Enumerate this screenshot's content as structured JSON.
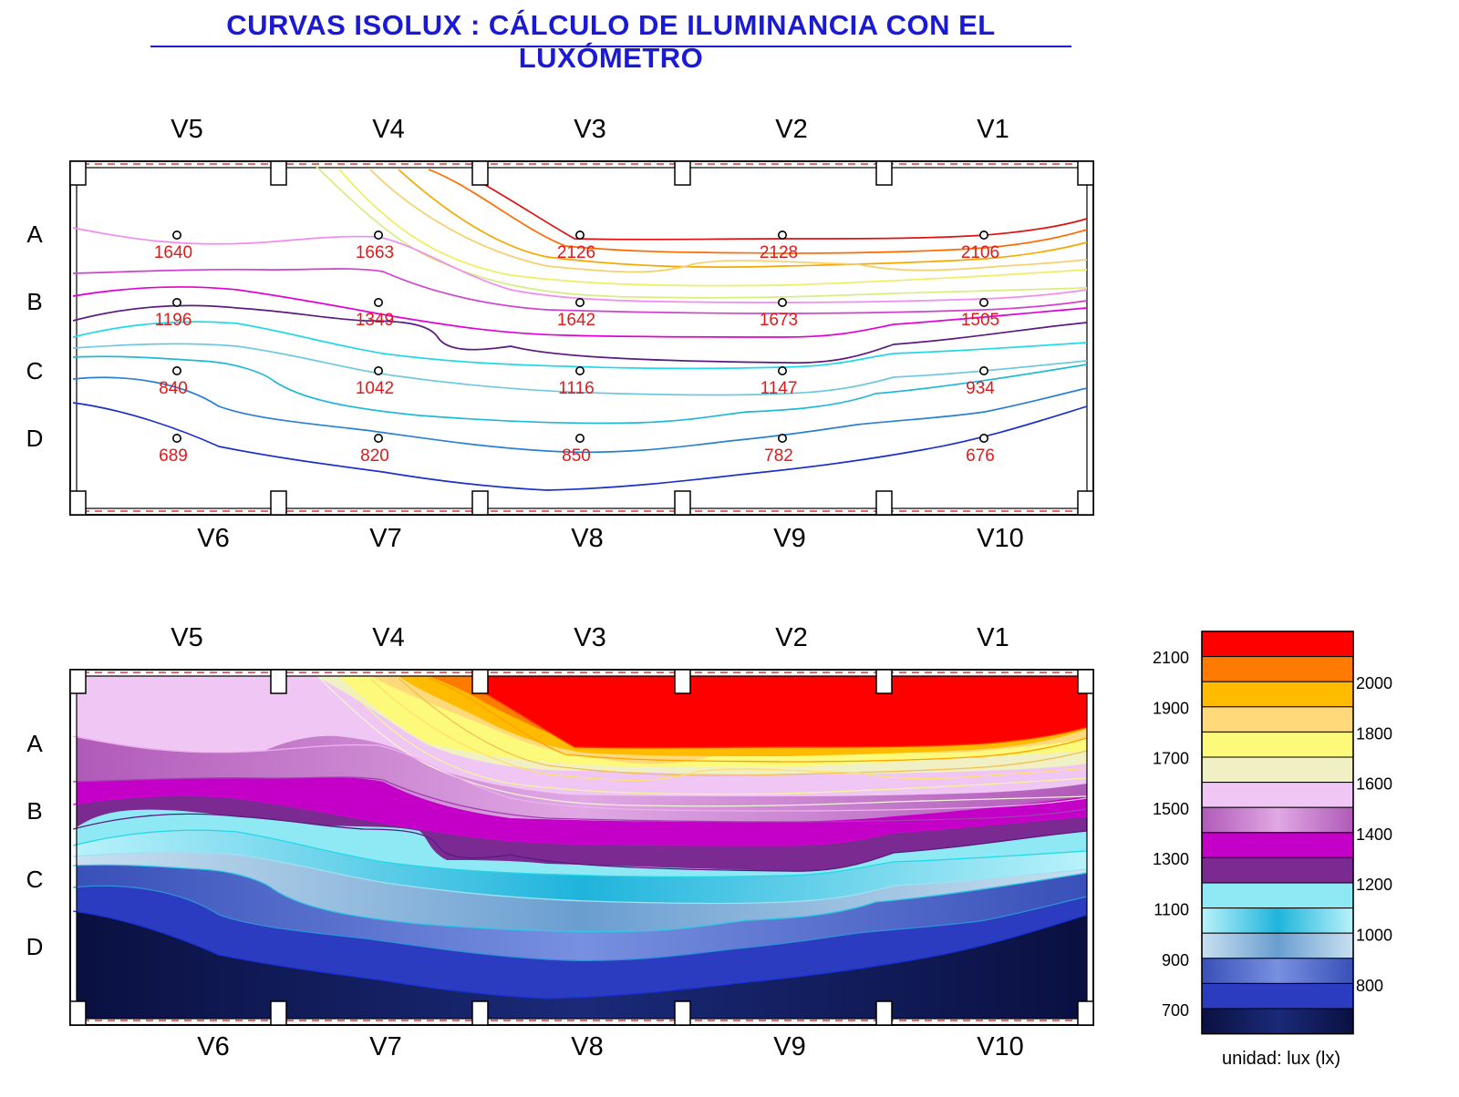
{
  "title": "CURVAS ISOLUX : CÁLCULO DE ILUMINANCIA CON EL  LUXÓMETRO",
  "top_window_labels": [
    "V5",
    "V4",
    "V3",
    "V2",
    "V1"
  ],
  "bottom_window_labels": [
    "V6",
    "V7",
    "V8",
    "V9",
    "V10"
  ],
  "row_labels": [
    "A",
    "B",
    "C",
    "D"
  ],
  "legend": {
    "unit": "unidad: lux (lx)",
    "left_ticks": [
      "2100",
      "1900",
      "1700",
      "1500",
      "1300",
      "1100",
      "900",
      "700"
    ],
    "right_ticks": [
      "2000",
      "1800",
      "1600",
      "1400",
      "1200",
      "1000",
      "800"
    ],
    "band_colors": [
      "#ff0000",
      "#ff7a00",
      "#ffbb00",
      "#ffd97a",
      "#fdf97a",
      "#f0f0c4",
      "#f0c6f5",
      "#c77ac9",
      "#c400c8",
      "#7a2a90",
      "#8fe9f5",
      "#2ab5d8",
      "#88b6dd",
      "#5270cc",
      "#2b3cc0",
      "#0c1850"
    ]
  },
  "chart_data": [
    {
      "type": "contour",
      "title": "",
      "columns": [
        "V5/V6",
        "V4/V7",
        "V3/V8",
        "V2/V9",
        "V1/V10"
      ],
      "rows": [
        "A",
        "B",
        "C",
        "D"
      ],
      "values": [
        [
          1640,
          1663,
          2126,
          2128,
          2106
        ],
        [
          1196,
          1349,
          1642,
          1673,
          1505
        ],
        [
          840,
          1042,
          1116,
          1147,
          934
        ],
        [
          689,
          820,
          850,
          782,
          676
        ]
      ],
      "value_labels": [
        [
          "1640",
          "1663",
          "2126",
          "2128",
          "2106"
        ],
        [
          "1196",
          "1349",
          "1642",
          "1673",
          "1505"
        ],
        [
          "840",
          "1042",
          "1116",
          "1147",
          "934"
        ],
        [
          "689",
          "820",
          "850",
          "782",
          "676"
        ]
      ],
      "isolines": [
        {
          "level": 2100,
          "color": "#e01010"
        },
        {
          "level": 2000,
          "color": "#ff6a00"
        },
        {
          "level": 1900,
          "color": "#f5a800"
        },
        {
          "level": 1800,
          "color": "#f5d070"
        },
        {
          "level": 1700,
          "color": "#eeee60"
        },
        {
          "level": 1600,
          "color": "#d8ec80"
        },
        {
          "level": 1500,
          "color": "#f08cf0"
        },
        {
          "level": 1400,
          "color": "#d040d0"
        },
        {
          "level": 1300,
          "color": "#e000d8"
        },
        {
          "level": 1200,
          "color": "#5a1a80"
        },
        {
          "level": 1100,
          "color": "#22d8e8"
        },
        {
          "level": 1000,
          "color": "#70c8e0"
        },
        {
          "level": 900,
          "color": "#20b8d8"
        },
        {
          "level": 800,
          "color": "#2a80d0"
        },
        {
          "level": 700,
          "color": "#1a30c8"
        }
      ]
    },
    {
      "type": "heatmap",
      "title": "",
      "unit": "lux (lx)",
      "scale_range": [
        600,
        2200
      ],
      "band_step": 100
    }
  ]
}
